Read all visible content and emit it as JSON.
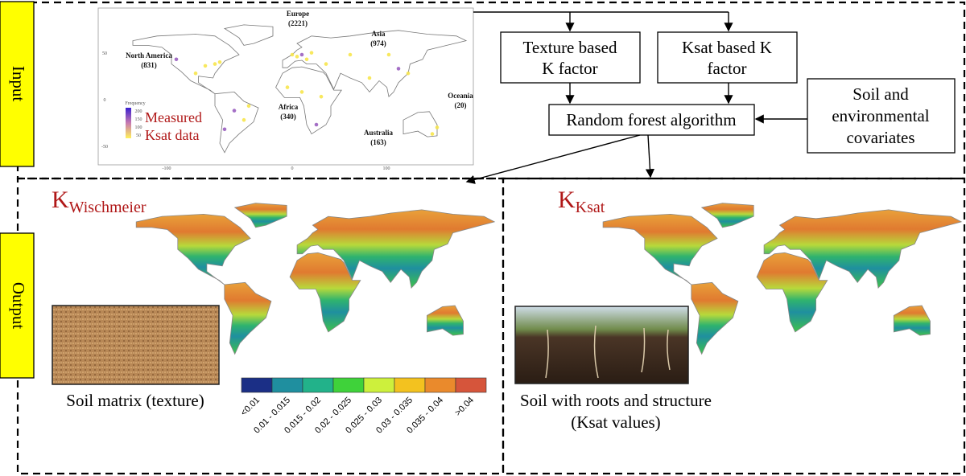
{
  "input_label": "Input",
  "output_label": "Output",
  "measured_map": {
    "regions": [
      {
        "name": "Europe",
        "count": "(2221)"
      },
      {
        "name": "Asia",
        "count": "(974)"
      },
      {
        "name": "North America",
        "count": "(831)"
      },
      {
        "name": "Africa",
        "count": "(340)"
      },
      {
        "name": "Australia",
        "count": "(163)"
      },
      {
        "name": "Oceania",
        "count": "(20)"
      }
    ],
    "frequency_title": "Frequency",
    "frequency_ticks": [
      "200",
      "150",
      "100",
      "50"
    ],
    "caption": [
      "Measured",
      "Ksat data"
    ],
    "lat_ticks": [
      "50",
      "0",
      "-50"
    ],
    "lon_ticks": [
      "-100",
      "0",
      "100"
    ]
  },
  "boxes": {
    "texture": [
      "Texture based",
      "K factor"
    ],
    "ksat": [
      "Ksat based K",
      "factor"
    ],
    "random_forest": "Random forest algorithm",
    "covariates": [
      "Soil and",
      "environmental",
      "covariates"
    ]
  },
  "outputs": [
    {
      "symbol": "K",
      "subscript": "Wischmeier",
      "caption": [
        "Soil matrix (texture)"
      ]
    },
    {
      "symbol": "K",
      "subscript": "Ksat",
      "caption": [
        "Soil with roots and structure",
        "(Ksat values)"
      ]
    }
  ],
  "legend": [
    {
      "label": "<0.01",
      "color": "#1b2f86"
    },
    {
      "label": "0.01 - 0.015",
      "color": "#1f8f9f"
    },
    {
      "label": "0.015 - 0.02",
      "color": "#22b28a"
    },
    {
      "label": "0.02 - 0.025",
      "color": "#3fd23a"
    },
    {
      "label": "0.025 - 0.03",
      "color": "#cdf03c"
    },
    {
      "label": "0.03 - 0.035",
      "color": "#f3c21f"
    },
    {
      "label": "0.035 - 0.04",
      "color": "#ea8a2c"
    },
    {
      "label": ">0.04",
      "color": "#d6553b"
    }
  ]
}
